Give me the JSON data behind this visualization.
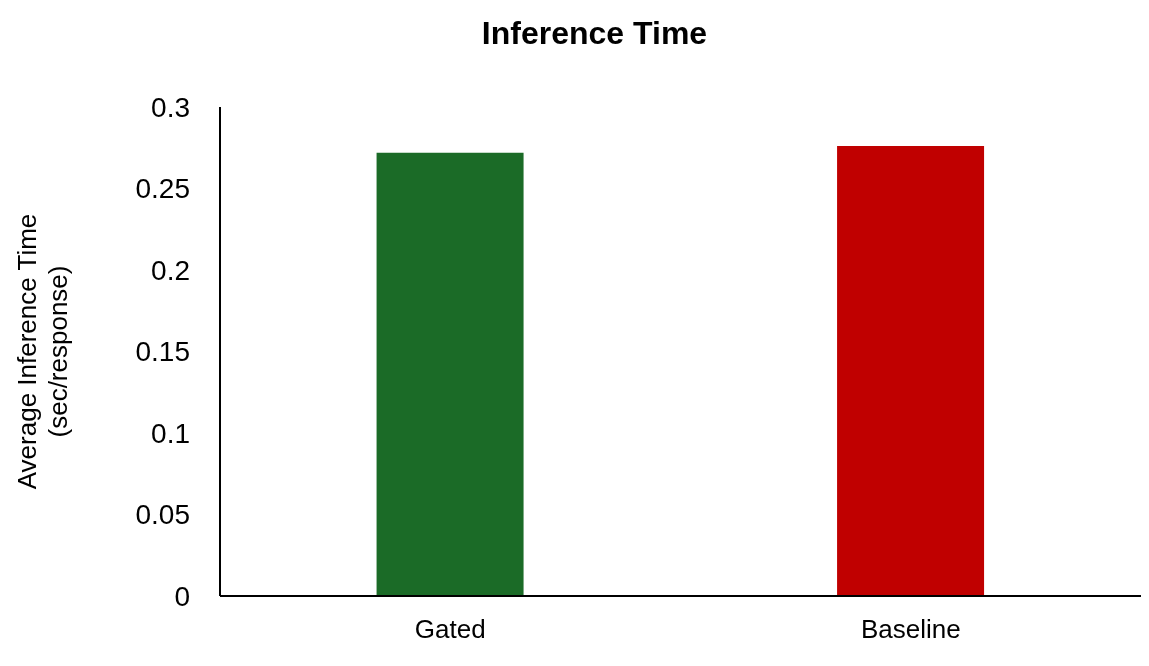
{
  "chart_data": {
    "type": "bar",
    "title": "Inference Time",
    "ylabel": "Average Inference Time\n(sec/response)",
    "categories": [
      "Gated",
      "Baseline"
    ],
    "values": [
      0.272,
      0.276
    ],
    "colors": [
      "#1b6b27",
      "#c00000"
    ],
    "ylim": [
      0,
      0.3
    ],
    "yticks": [
      0,
      0.05,
      0.1,
      0.15,
      0.2,
      0.25,
      0.3
    ],
    "grid": false,
    "legend": false
  }
}
